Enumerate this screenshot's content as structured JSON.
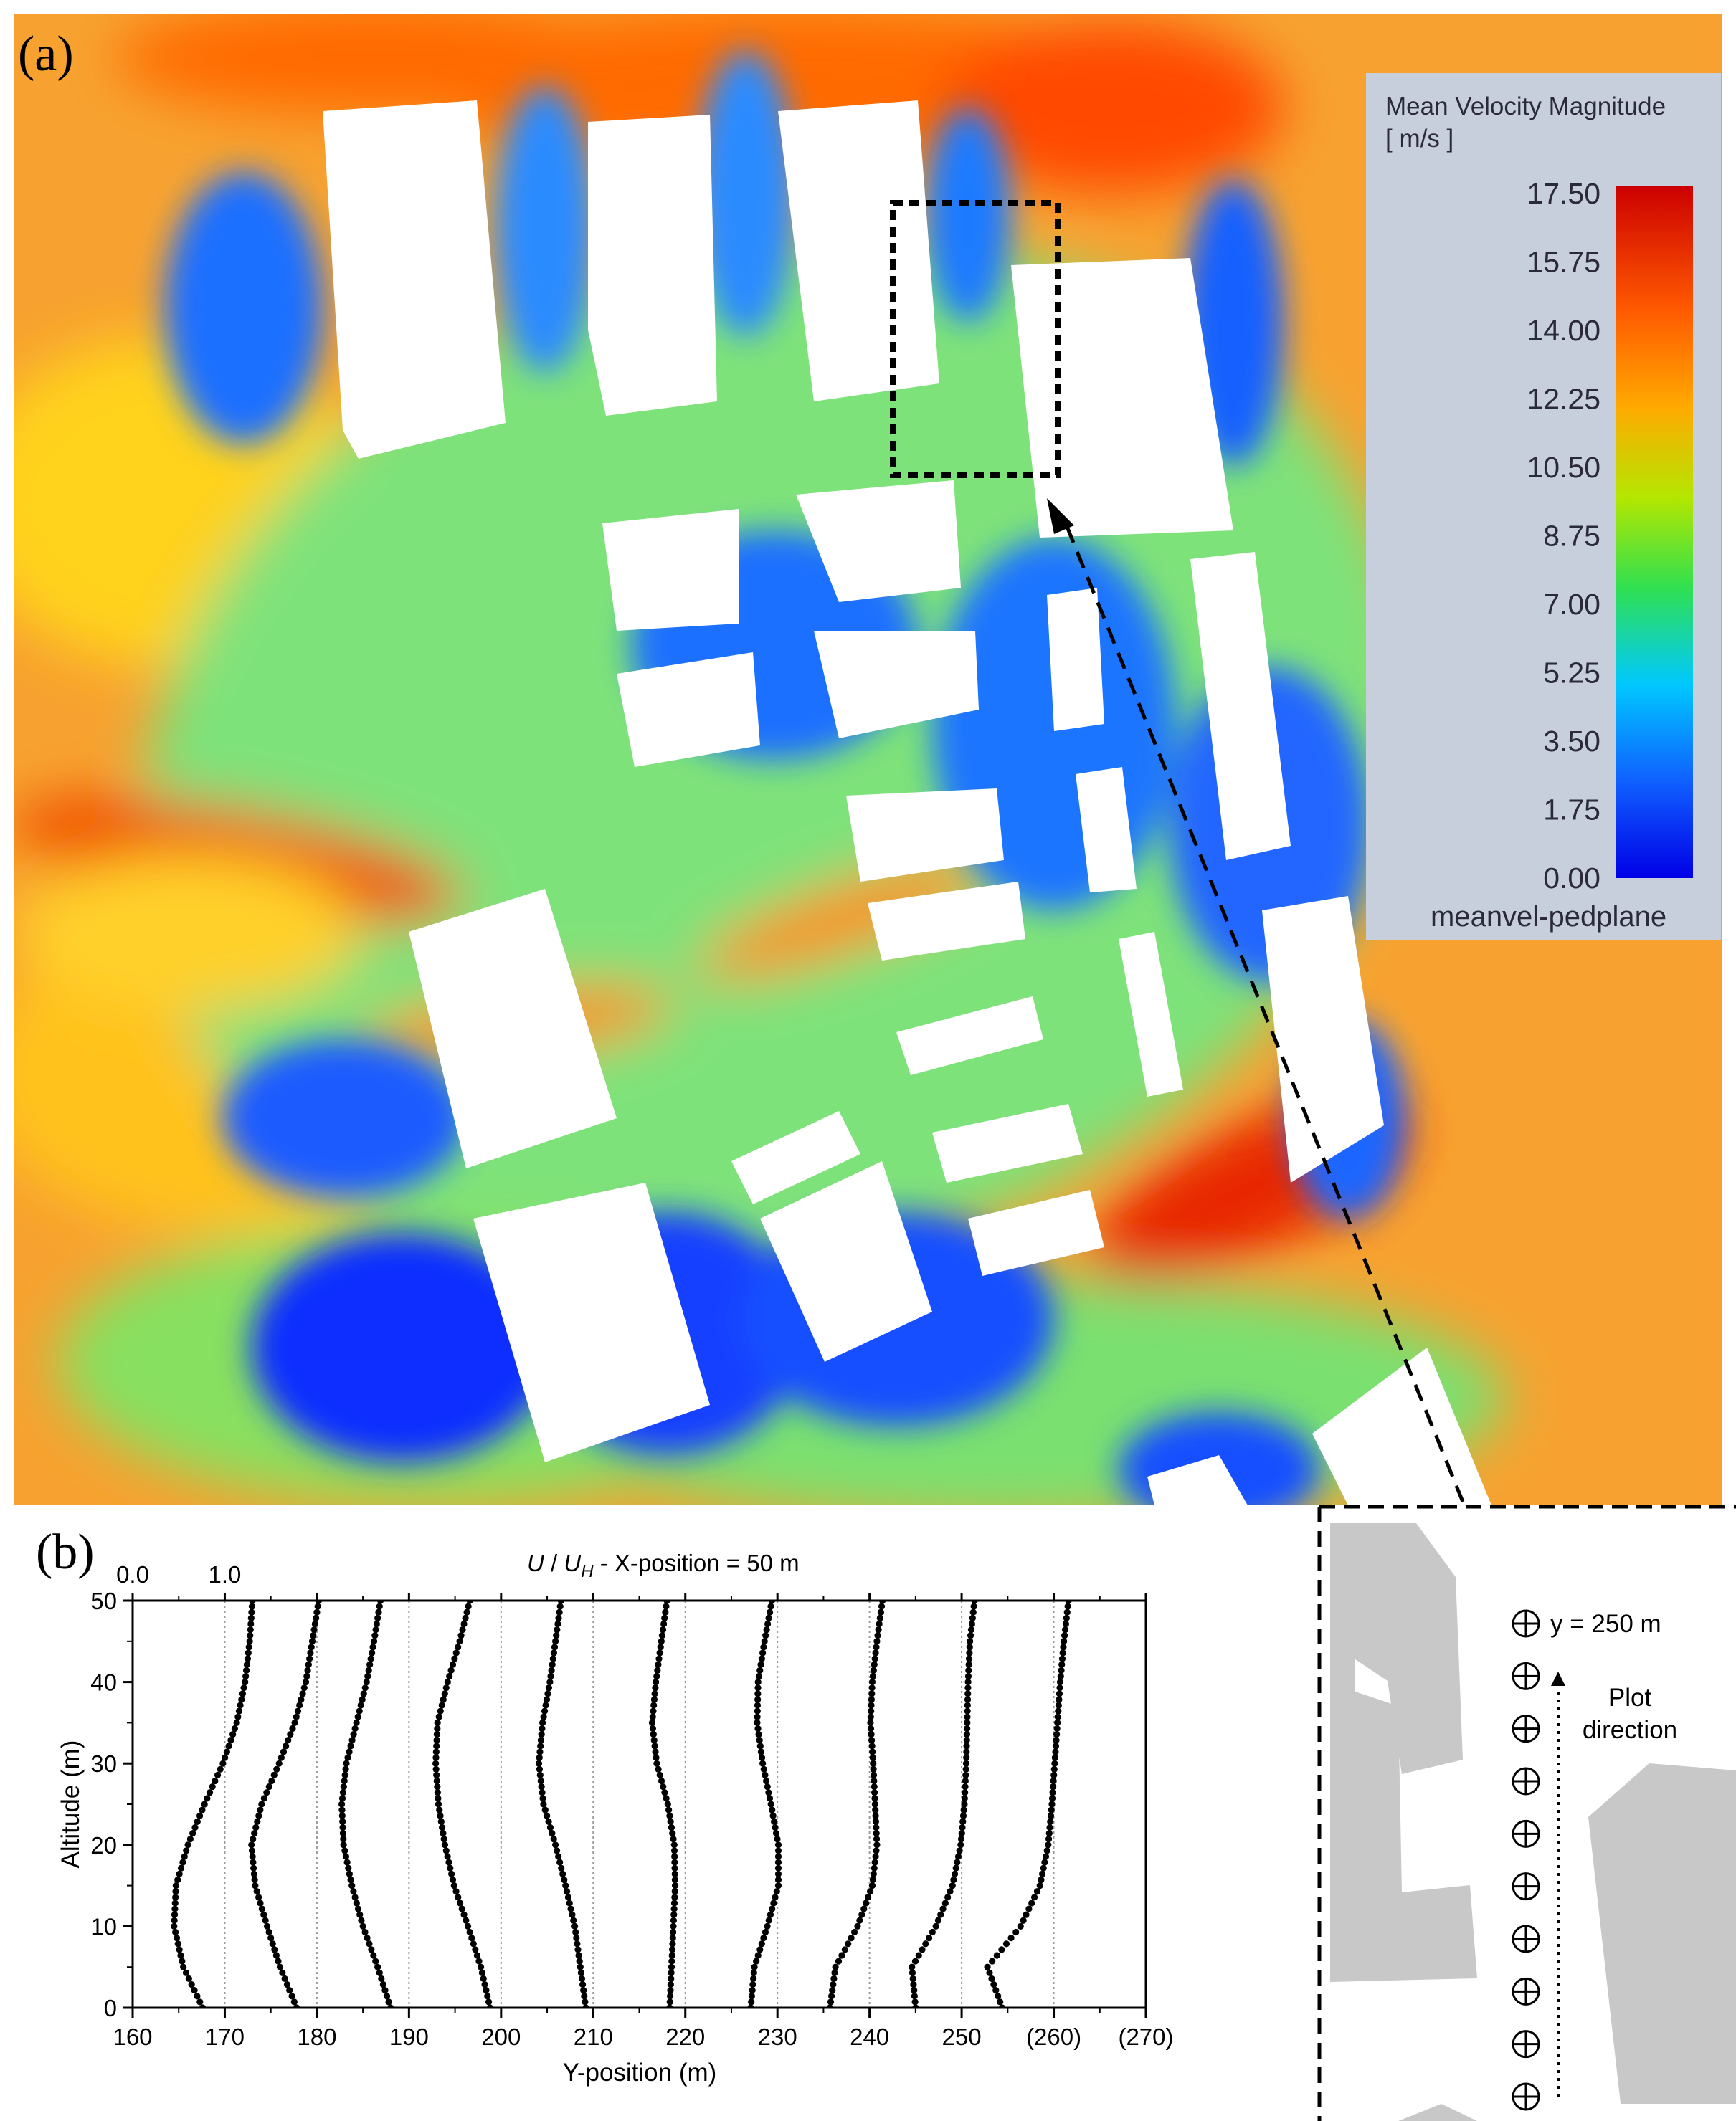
{
  "panel_a": {
    "label": "(a)",
    "legend": {
      "title_line1": "Mean Velocity Magnitude",
      "title_line2": "[ m/s ]",
      "variable": "meanvel-pedplane",
      "ticks": [
        "17.50",
        "15.75",
        "14.00",
        "12.25",
        "10.50",
        "8.75",
        "7.00",
        "5.25",
        "3.50",
        "1.75",
        "0.00"
      ],
      "colors": [
        "#cc0000",
        "#ff6a00",
        "#ffb000",
        "#7ee000",
        "#00d2ff",
        "#0040ff",
        "#0000e0"
      ]
    }
  },
  "panel_b": {
    "label": "(b)",
    "secondary_ticks": [
      "0.0",
      "1.0"
    ],
    "inset": {
      "position_label": "y = 250 m",
      "direction_line1": "Plot",
      "direction_line2": "direction",
      "marker_count": 10
    }
  },
  "chart_data": {
    "type": "line",
    "title": "U / U_H - X-position = 50 m",
    "title_parts": {
      "u": "U",
      "sep": " / ",
      "uh": "U",
      "sub": "H",
      "rest": " - X-position = 50 m"
    },
    "xlabel": "Y-position (m)",
    "ylabel": "Altitude (m)",
    "xlim": [
      160,
      270
    ],
    "ylim": [
      0,
      50
    ],
    "x_ticks": [
      "160",
      "170",
      "180",
      "190",
      "200",
      "210",
      "220",
      "230",
      "240",
      "250",
      "(260)",
      "(270)"
    ],
    "y_ticks": [
      "0",
      "10",
      "20",
      "30",
      "40",
      "50"
    ],
    "grid": "vertical dotted at each Y-position",
    "scale_note": "profile offset 1.0 U/U_H spans 10 m of Y-position",
    "series": [
      {
        "y_position": 160,
        "profile": [
          [
            167.6,
            0
          ],
          [
            165.5,
            5
          ],
          [
            164.5,
            10
          ],
          [
            164.7,
            15
          ],
          [
            166.0,
            20
          ],
          [
            167.8,
            25
          ],
          [
            169.8,
            30
          ],
          [
            171.3,
            35
          ],
          [
            172.2,
            40
          ],
          [
            172.7,
            45
          ],
          [
            173.0,
            50
          ]
        ]
      },
      {
        "y_position": 170,
        "profile": [
          [
            177.8,
            0
          ],
          [
            176.0,
            5
          ],
          [
            174.6,
            10
          ],
          [
            173.3,
            15
          ],
          [
            172.9,
            20
          ],
          [
            174.0,
            25
          ],
          [
            175.9,
            30
          ],
          [
            177.6,
            35
          ],
          [
            178.8,
            40
          ],
          [
            179.5,
            45
          ],
          [
            180.2,
            50
          ]
        ]
      },
      {
        "y_position": 180,
        "profile": [
          [
            188.0,
            0
          ],
          [
            186.6,
            5
          ],
          [
            185.0,
            10
          ],
          [
            183.8,
            15
          ],
          [
            182.9,
            20
          ],
          [
            182.7,
            25
          ],
          [
            183.2,
            30
          ],
          [
            184.3,
            35
          ],
          [
            185.4,
            40
          ],
          [
            186.2,
            45
          ],
          [
            186.9,
            50
          ]
        ]
      },
      {
        "y_position": 190,
        "profile": [
          [
            198.8,
            0
          ],
          [
            197.8,
            5
          ],
          [
            196.4,
            10
          ],
          [
            194.9,
            15
          ],
          [
            193.9,
            20
          ],
          [
            193.2,
            25
          ],
          [
            192.9,
            30
          ],
          [
            193.1,
            35
          ],
          [
            194.2,
            40
          ],
          [
            195.5,
            45
          ],
          [
            196.6,
            50
          ]
        ]
      },
      {
        "y_position": 200,
        "profile": [
          [
            209.2,
            0
          ],
          [
            208.6,
            5
          ],
          [
            208.0,
            10
          ],
          [
            207.0,
            15
          ],
          [
            205.9,
            20
          ],
          [
            204.6,
            25
          ],
          [
            204.1,
            30
          ],
          [
            204.5,
            35
          ],
          [
            205.3,
            40
          ],
          [
            205.9,
            45
          ],
          [
            206.5,
            50
          ]
        ]
      },
      {
        "y_position": 210,
        "profile": [
          [
            218.3,
            0
          ],
          [
            218.5,
            5
          ],
          [
            218.7,
            10
          ],
          [
            218.9,
            15
          ],
          [
            218.8,
            20
          ],
          [
            218.1,
            25
          ],
          [
            216.9,
            30
          ],
          [
            216.4,
            35
          ],
          [
            216.8,
            40
          ],
          [
            217.4,
            45
          ],
          [
            218.0,
            50
          ]
        ]
      },
      {
        "y_position": 220,
        "profile": [
          [
            227.1,
            0
          ],
          [
            227.5,
            5
          ],
          [
            228.9,
            10
          ],
          [
            230.1,
            15
          ],
          [
            230.1,
            20
          ],
          [
            229.3,
            25
          ],
          [
            228.4,
            30
          ],
          [
            227.8,
            35
          ],
          [
            227.9,
            40
          ],
          [
            228.6,
            45
          ],
          [
            229.4,
            50
          ]
        ]
      },
      {
        "y_position": 230,
        "profile": [
          [
            235.7,
            0
          ],
          [
            236.3,
            5
          ],
          [
            238.7,
            10
          ],
          [
            240.3,
            15
          ],
          [
            240.8,
            20
          ],
          [
            240.6,
            25
          ],
          [
            240.4,
            30
          ],
          [
            240.1,
            35
          ],
          [
            240.3,
            40
          ],
          [
            240.8,
            45
          ],
          [
            241.4,
            50
          ]
        ]
      },
      {
        "y_position": 240,
        "profile": [
          [
            245.0,
            0
          ],
          [
            244.6,
            5
          ],
          [
            247.2,
            10
          ],
          [
            249.0,
            15
          ],
          [
            249.9,
            20
          ],
          [
            250.3,
            25
          ],
          [
            250.5,
            30
          ],
          [
            250.6,
            35
          ],
          [
            250.7,
            40
          ],
          [
            250.9,
            45
          ],
          [
            251.4,
            50
          ]
        ]
      },
      {
        "y_position": 250,
        "profile": [
          [
            254.4,
            0
          ],
          [
            252.8,
            5
          ],
          [
            256.4,
            10
          ],
          [
            258.5,
            15
          ],
          [
            259.4,
            20
          ],
          [
            259.8,
            25
          ],
          [
            260.1,
            30
          ],
          [
            260.4,
            35
          ],
          [
            260.7,
            40
          ],
          [
            261.1,
            45
          ],
          [
            261.6,
            50
          ]
        ]
      }
    ]
  }
}
